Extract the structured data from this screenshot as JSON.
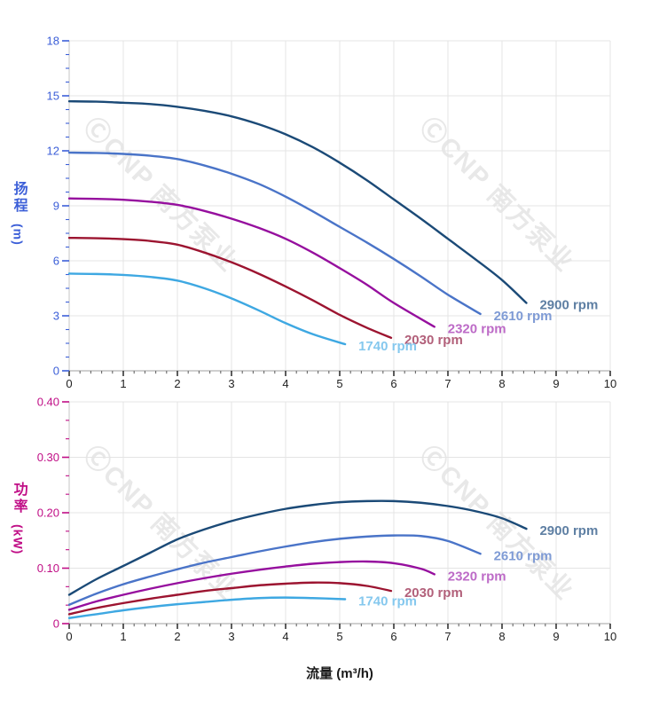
{
  "watermark": {
    "text": "ⒸCNP 南方泵业"
  },
  "charts_ui": {
    "head_axis": {
      "cjk": "扬程",
      "unit": "(m)",
      "color": "#3c5fd8"
    },
    "power_axis": {
      "cjk": "功率",
      "unit": "(kW)",
      "color": "#c00e86"
    },
    "flow_axis_title": "流量 (m³/h)"
  },
  "chart_data": [
    {
      "type": "line",
      "title": "",
      "xlabel": "流量 (m³/h)",
      "ylabel": "扬程 (m)",
      "xlim": [
        0,
        10
      ],
      "ylim": [
        0,
        18
      ],
      "x_major_step": 1,
      "x_minor_step": 0.2,
      "y_major_step": 3,
      "y_minor_step": 0.75,
      "grid": true,
      "legend_position": "curve-end-labels",
      "axis_color": "#3c5fd8",
      "x_tick_labels": [
        "0",
        "1",
        "2",
        "3",
        "4",
        "5",
        "6",
        "7",
        "8",
        "9",
        "10"
      ],
      "y_tick_labels": [
        "0",
        "3",
        "6",
        "9",
        "12",
        "15",
        "18"
      ],
      "series": [
        {
          "name": "2900 rpm",
          "color": "#1b4a77",
          "label_color": "#5e7fa3",
          "points": [
            [
              0,
              14.7
            ],
            [
              0.5,
              14.68
            ],
            [
              1,
              14.62
            ],
            [
              1.5,
              14.55
            ],
            [
              2,
              14.4
            ],
            [
              2.5,
              14.18
            ],
            [
              3,
              13.88
            ],
            [
              3.5,
              13.45
            ],
            [
              4,
              12.9
            ],
            [
              4.5,
              12.2
            ],
            [
              5,
              11.35
            ],
            [
              5.5,
              10.4
            ],
            [
              6,
              9.35
            ],
            [
              6.5,
              8.3
            ],
            [
              7,
              7.2
            ],
            [
              7.5,
              6.1
            ],
            [
              8,
              4.95
            ],
            [
              8.45,
              3.7
            ]
          ]
        },
        {
          "name": "2610 rpm",
          "color": "#4a74c8",
          "label_color": "#7f9bd5",
          "points": [
            [
              0,
              11.9
            ],
            [
              0.5,
              11.88
            ],
            [
              1,
              11.83
            ],
            [
              1.5,
              11.73
            ],
            [
              2,
              11.55
            ],
            [
              2.5,
              11.2
            ],
            [
              3,
              10.75
            ],
            [
              3.5,
              10.2
            ],
            [
              4,
              9.5
            ],
            [
              4.5,
              8.7
            ],
            [
              5,
              7.85
            ],
            [
              5.5,
              7.0
            ],
            [
              6,
              6.1
            ],
            [
              6.5,
              5.15
            ],
            [
              7,
              4.15
            ],
            [
              7.6,
              3.1
            ]
          ]
        },
        {
          "name": "2320 rpm",
          "color": "#960f9e",
          "label_color": "#bd6bc7",
          "points": [
            [
              0,
              9.4
            ],
            [
              0.5,
              9.38
            ],
            [
              1,
              9.33
            ],
            [
              1.5,
              9.22
            ],
            [
              2,
              9.05
            ],
            [
              2.5,
              8.72
            ],
            [
              3,
              8.3
            ],
            [
              3.5,
              7.8
            ],
            [
              4,
              7.2
            ],
            [
              4.5,
              6.45
            ],
            [
              5,
              5.6
            ],
            [
              5.5,
              4.7
            ],
            [
              6,
              3.7
            ],
            [
              6.75,
              2.4
            ]
          ]
        },
        {
          "name": "2030 rpm",
          "color": "#9c1430",
          "label_color": "#b2607a",
          "points": [
            [
              0,
              7.25
            ],
            [
              0.5,
              7.23
            ],
            [
              1,
              7.18
            ],
            [
              1.5,
              7.08
            ],
            [
              2,
              6.88
            ],
            [
              2.5,
              6.45
            ],
            [
              3,
              5.92
            ],
            [
              3.5,
              5.3
            ],
            [
              4,
              4.6
            ],
            [
              4.5,
              3.85
            ],
            [
              5,
              3.05
            ],
            [
              5.5,
              2.35
            ],
            [
              5.95,
              1.8
            ]
          ]
        },
        {
          "name": "1740 rpm",
          "color": "#3ea8e2",
          "label_color": "#85c8ee",
          "points": [
            [
              0,
              5.3
            ],
            [
              0.5,
              5.28
            ],
            [
              1,
              5.23
            ],
            [
              1.5,
              5.12
            ],
            [
              2,
              4.92
            ],
            [
              2.5,
              4.5
            ],
            [
              3,
              3.95
            ],
            [
              3.5,
              3.3
            ],
            [
              4,
              2.6
            ],
            [
              4.5,
              2.0
            ],
            [
              5.1,
              1.45
            ]
          ]
        }
      ]
    },
    {
      "type": "line",
      "title": "",
      "xlabel": "流量 (m³/h)",
      "ylabel": "功率 (kW)",
      "xlim": [
        0,
        10
      ],
      "ylim": [
        0,
        0.4
      ],
      "x_major_step": 1,
      "x_minor_step": 0.2,
      "y_major_step": 0.1,
      "y_minor_step": 0.033333,
      "grid": true,
      "legend_position": "curve-end-labels",
      "axis_color": "#c00e86",
      "x_tick_labels": [
        "0",
        "1",
        "2",
        "3",
        "4",
        "5",
        "6",
        "7",
        "8",
        "9",
        "10"
      ],
      "y_tick_labels": [
        "0",
        "0.10",
        "0.20",
        "0.30",
        "0.40"
      ],
      "series": [
        {
          "name": "2900 rpm",
          "color": "#1b4a77",
          "label_color": "#5e7fa3",
          "points": [
            [
              0,
              0.052
            ],
            [
              0.5,
              0.08
            ],
            [
              1,
              0.104
            ],
            [
              1.5,
              0.128
            ],
            [
              2,
              0.152
            ],
            [
              2.5,
              0.17
            ],
            [
              3,
              0.185
            ],
            [
              3.5,
              0.197
            ],
            [
              4,
              0.207
            ],
            [
              4.5,
              0.214
            ],
            [
              5,
              0.219
            ],
            [
              5.5,
              0.221
            ],
            [
              6,
              0.221
            ],
            [
              6.5,
              0.218
            ],
            [
              7,
              0.212
            ],
            [
              7.5,
              0.203
            ],
            [
              8,
              0.19
            ],
            [
              8.45,
              0.171
            ]
          ]
        },
        {
          "name": "2610 rpm",
          "color": "#4a74c8",
          "label_color": "#7f9bd5",
          "points": [
            [
              0,
              0.034
            ],
            [
              0.5,
              0.054
            ],
            [
              1,
              0.071
            ],
            [
              1.5,
              0.085
            ],
            [
              2,
              0.098
            ],
            [
              2.5,
              0.11
            ],
            [
              3,
              0.12
            ],
            [
              3.5,
              0.13
            ],
            [
              4,
              0.139
            ],
            [
              4.5,
              0.147
            ],
            [
              5,
              0.153
            ],
            [
              5.5,
              0.157
            ],
            [
              6,
              0.159
            ],
            [
              6.5,
              0.158
            ],
            [
              7,
              0.149
            ],
            [
              7.6,
              0.126
            ]
          ]
        },
        {
          "name": "2320 rpm",
          "color": "#960f9e",
          "label_color": "#bd6bc7",
          "points": [
            [
              0,
              0.025
            ],
            [
              0.5,
              0.04
            ],
            [
              1,
              0.052
            ],
            [
              1.5,
              0.063
            ],
            [
              2,
              0.073
            ],
            [
              2.5,
              0.082
            ],
            [
              3,
              0.09
            ],
            [
              3.5,
              0.097
            ],
            [
              4,
              0.103
            ],
            [
              4.5,
              0.108
            ],
            [
              5,
              0.111
            ],
            [
              5.5,
              0.112
            ],
            [
              6,
              0.109
            ],
            [
              6.5,
              0.099
            ],
            [
              6.75,
              0.089
            ]
          ]
        },
        {
          "name": "2030 rpm",
          "color": "#9c1430",
          "label_color": "#b2607a",
          "points": [
            [
              0,
              0.017
            ],
            [
              0.5,
              0.028
            ],
            [
              1,
              0.037
            ],
            [
              1.5,
              0.045
            ],
            [
              2,
              0.052
            ],
            [
              2.5,
              0.059
            ],
            [
              3,
              0.064
            ],
            [
              3.5,
              0.069
            ],
            [
              4,
              0.072
            ],
            [
              4.5,
              0.074
            ],
            [
              5,
              0.073
            ],
            [
              5.5,
              0.068
            ],
            [
              5.95,
              0.059
            ]
          ]
        },
        {
          "name": "1740 rpm",
          "color": "#3ea8e2",
          "label_color": "#85c8ee",
          "points": [
            [
              0,
              0.01
            ],
            [
              0.5,
              0.017
            ],
            [
              1,
              0.024
            ],
            [
              1.5,
              0.03
            ],
            [
              2,
              0.035
            ],
            [
              2.5,
              0.039
            ],
            [
              3,
              0.043
            ],
            [
              3.5,
              0.046
            ],
            [
              4,
              0.047
            ],
            [
              4.5,
              0.046
            ],
            [
              5.1,
              0.044
            ]
          ]
        }
      ]
    }
  ]
}
